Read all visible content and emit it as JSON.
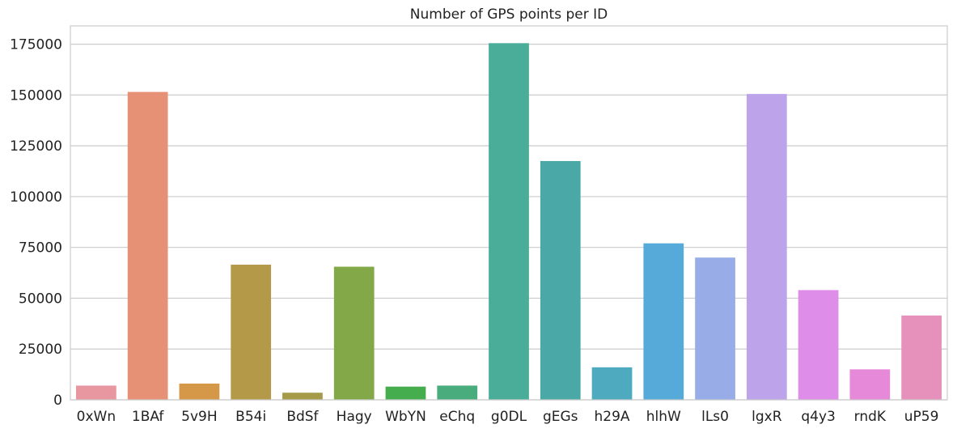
{
  "chart_data": {
    "type": "bar",
    "title": "Number of GPS points per ID",
    "xlabel": "",
    "ylabel": "",
    "categories": [
      "0xWn",
      "1BAf",
      "5v9H",
      "B54i",
      "BdSf",
      "Hagy",
      "WbYN",
      "eChq",
      "g0DL",
      "gEGs",
      "h29A",
      "hlhW",
      "lLs0",
      "lgxR",
      "q4y3",
      "rndK",
      "uP59"
    ],
    "values": [
      7000,
      151500,
      8000,
      66500,
      3500,
      65500,
      6500,
      7000,
      175500,
      117500,
      16000,
      77000,
      70000,
      150500,
      54000,
      15000,
      41500
    ],
    "colors": [
      "#e8969f",
      "#e69175",
      "#d59748",
      "#b49a48",
      "#a49a48",
      "#82a847",
      "#45ad4e",
      "#48ac7c",
      "#49ad9a",
      "#4aa8a6",
      "#4eabbf",
      "#55aad9",
      "#98ace8",
      "#bca3ea",
      "#de8de8",
      "#e589d8",
      "#e690bc"
    ],
    "ylim": [
      0,
      184000
    ],
    "yticks": [
      0,
      25000,
      50000,
      75000,
      100000,
      125000,
      150000,
      175000
    ],
    "ytick_labels": [
      "0",
      "25000",
      "50000",
      "75000",
      "100000",
      "125000",
      "150000",
      "175000"
    ],
    "grid": true,
    "legend": "none"
  }
}
